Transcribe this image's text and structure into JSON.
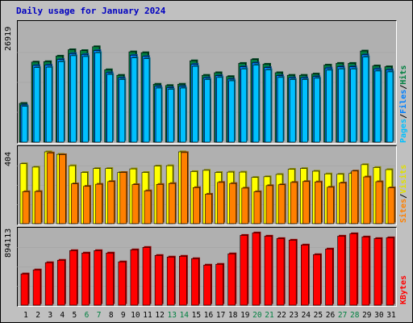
{
  "chart_data": {
    "type": "bar",
    "title": "Daily usage for January 2024",
    "categories": [
      "1",
      "2",
      "3",
      "4",
      "5",
      "6",
      "7",
      "8",
      "9",
      "10",
      "11",
      "12",
      "13",
      "14",
      "15",
      "16",
      "17",
      "18",
      "19",
      "20",
      "21",
      "22",
      "23",
      "24",
      "25",
      "26",
      "27",
      "28",
      "29",
      "30",
      "31"
    ],
    "weekend_days": [
      "6",
      "7",
      "13",
      "14",
      "20",
      "21",
      "27",
      "28"
    ],
    "panels": [
      {
        "name": "hits_files_pages",
        "max_label": "26919",
        "ylim": [
          0,
          26919
        ],
        "legend": [
          "Pages",
          "/",
          "Files",
          "/",
          "Hits"
        ],
        "series": [
          {
            "name": "Hits",
            "color": "#008040",
            "values": [
              9100,
              18800,
              18900,
              20200,
              21700,
              21500,
              22400,
              17000,
              15700,
              21200,
              21000,
              13600,
              13300,
              13600,
              19100,
              15700,
              16300,
              15400,
              18500,
              19400,
              18300,
              16300,
              15700,
              15700,
              16000,
              18100,
              18500,
              18500,
              21400,
              17900,
              17700
            ]
          },
          {
            "name": "Files",
            "color": "#0080ff",
            "values": [
              8700,
              18000,
              18100,
              19400,
              20800,
              20600,
              21500,
              16300,
              15100,
              20400,
              20100,
              13100,
              12800,
              13100,
              18300,
              15100,
              15600,
              14800,
              17700,
              18600,
              17500,
              15600,
              15100,
              15100,
              15400,
              17400,
              17700,
              17700,
              20500,
              17200,
              17000
            ]
          },
          {
            "name": "Pages",
            "color": "#00c0ff",
            "values": [
              8400,
              17500,
              17600,
              18900,
              20300,
              20100,
              21000,
              15900,
              14700,
              19800,
              19600,
              12700,
              12400,
              12700,
              17800,
              14700,
              15200,
              14400,
              17200,
              18100,
              17000,
              15200,
              14700,
              14700,
              15000,
              16900,
              17200,
              17200,
              20000,
              16700,
              16500
            ]
          }
        ]
      },
      {
        "name": "visits_sites",
        "max_label": "404",
        "ylim": [
          0,
          404
        ],
        "legend": [
          "Sites",
          "/",
          "Visits"
        ],
        "series": [
          {
            "name": "Visits",
            "color": "#ffff00",
            "values": [
              337,
              318,
              404,
              390,
              326,
              288,
              310,
              310,
              288,
              308,
              288,
              324,
              326,
              404,
              293,
              300,
              288,
              290,
              290,
              260,
              264,
              277,
              306,
              310,
              295,
              280,
              278,
              283,
              332,
              316,
              304
            ]
          },
          {
            "name": "Sites",
            "color": "#ff8000",
            "values": [
              180,
              181,
              398,
              388,
              224,
              210,
              222,
              237,
              288,
              220,
              185,
              221,
              226,
              400,
              203,
              166,
              232,
              226,
              200,
              180,
              214,
              219,
              232,
              237,
              235,
              205,
              229,
              296,
              263,
              236,
              202
            ]
          }
        ]
      },
      {
        "name": "kbytes",
        "max_label": "894113",
        "ylim": [
          0,
          894113
        ],
        "legend": [
          "KBytes"
        ],
        "series": [
          {
            "name": "KBytes",
            "color": "#ff0000",
            "values": [
              390000,
              440000,
              530000,
              560000,
              680000,
              650000,
              680000,
              650000,
              540000,
              690000,
              720000,
              620000,
              600000,
              610000,
              580000,
              500000,
              510000,
              640000,
              870000,
              900000,
              860000,
              830000,
              810000,
              750000,
              630000,
              700000,
              860000,
              890000,
              850000,
              830000,
              840000
            ]
          }
        ]
      }
    ],
    "grid": true,
    "legend_position": "right"
  }
}
